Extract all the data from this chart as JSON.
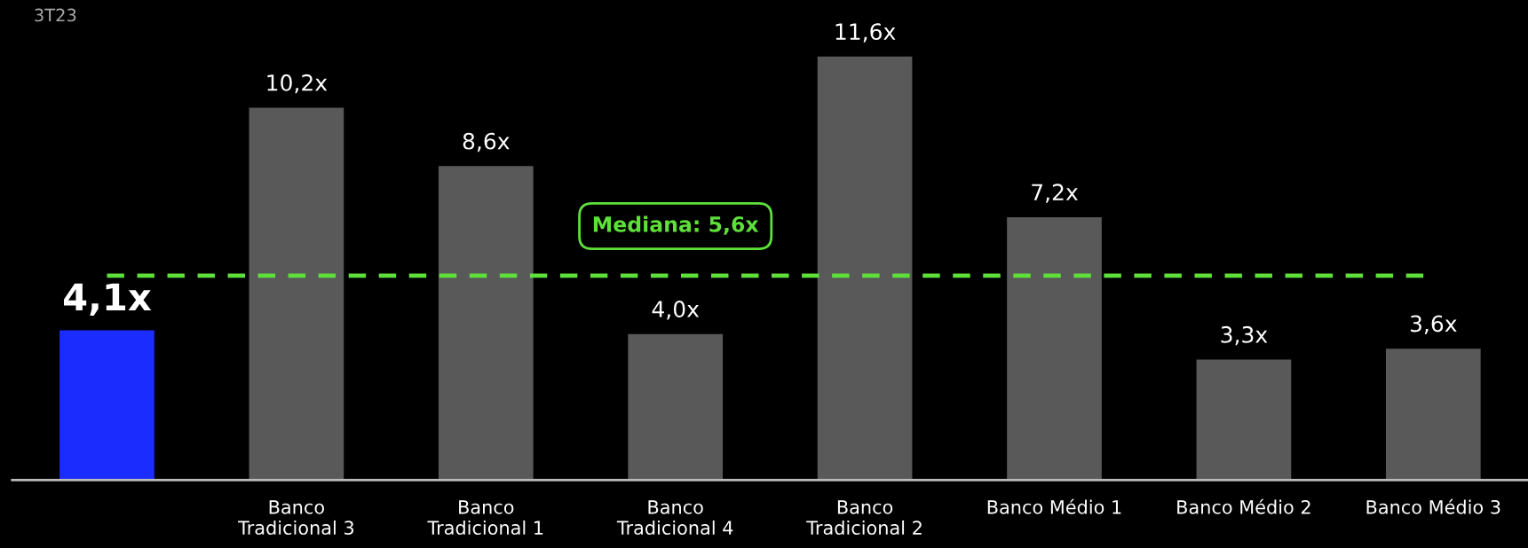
{
  "chart_data": {
    "type": "bar",
    "categories": [
      null,
      "Banco\nTradicional 3",
      "Banco\nTradicional 1",
      "Banco\nTradicional 4",
      "Banco\nTradicional 2",
      "Banco Médio 1",
      "Banco Médio 2",
      "Banco Médio 3"
    ],
    "values": [
      4.1,
      10.2,
      8.6,
      4.0,
      11.6,
      7.2,
      3.3,
      3.6
    ],
    "colors": [
      "#1a2cff",
      "#595959",
      "#595959",
      "#595959",
      "#595959",
      "#595959",
      "#595959",
      "#595959"
    ],
    "value_labels": [
      "4,1x",
      "10,2x",
      "8,6x",
      "4,0x",
      "11,6x",
      "7,2x",
      "3,3x",
      "3,6x"
    ],
    "ref_lines": [
      {
        "axis": "y",
        "value": 5.6,
        "label": "Mediana: 5,6x",
        "color": "#5ee03a",
        "line_style": "dashed"
      }
    ],
    "annotations": [
      "3T23"
    ],
    "grid": false
  }
}
